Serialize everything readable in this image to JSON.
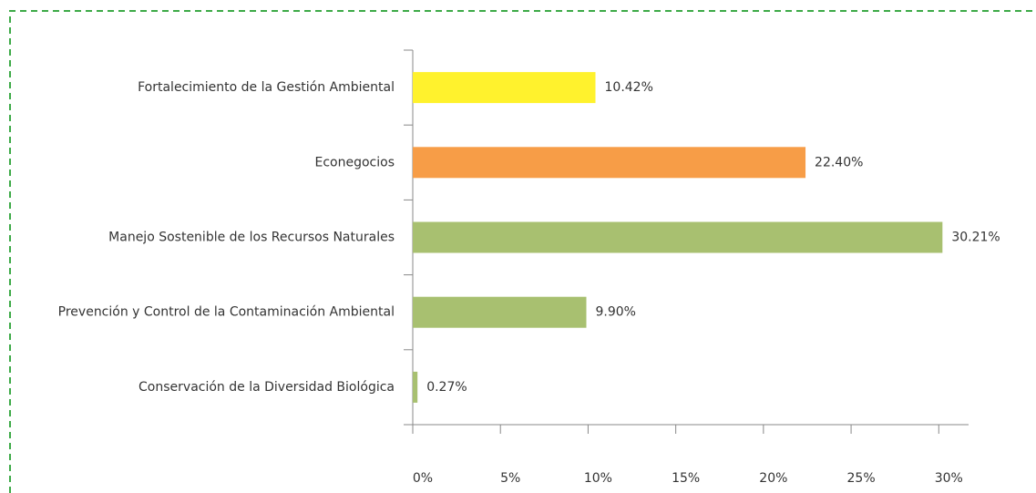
{
  "chart_data": {
    "type": "hbar",
    "categories": [
      "Fortalecimiento de la Gestión Ambiental",
      "Econegocios",
      "Manejo Sostenible de los Recursos Naturales",
      "Prevención y Control de la Contaminación Ambiental",
      "Conservación de la Diversidad Biológica"
    ],
    "values": [
      10.42,
      22.4,
      30.21,
      9.9,
      0.27
    ],
    "value_labels": [
      "10.42%",
      "22.40%",
      "30.21%",
      "9.90%",
      "0.27%"
    ],
    "colors": [
      "#fff22d",
      "#f79d47",
      "#a8c070",
      "#a8c070",
      "#a8c070"
    ],
    "xlim": [
      0,
      31.7
    ],
    "xticks": [
      {
        "value": 0,
        "label": "0%"
      },
      {
        "value": 5,
        "label": "5%"
      },
      {
        "value": 10,
        "label": "10%"
      },
      {
        "value": 15,
        "label": "15%"
      },
      {
        "value": 20,
        "label": "20%"
      },
      {
        "value": 25,
        "label": "25%"
      },
      {
        "value": 30,
        "label": "30%"
      }
    ],
    "grid": false
  }
}
